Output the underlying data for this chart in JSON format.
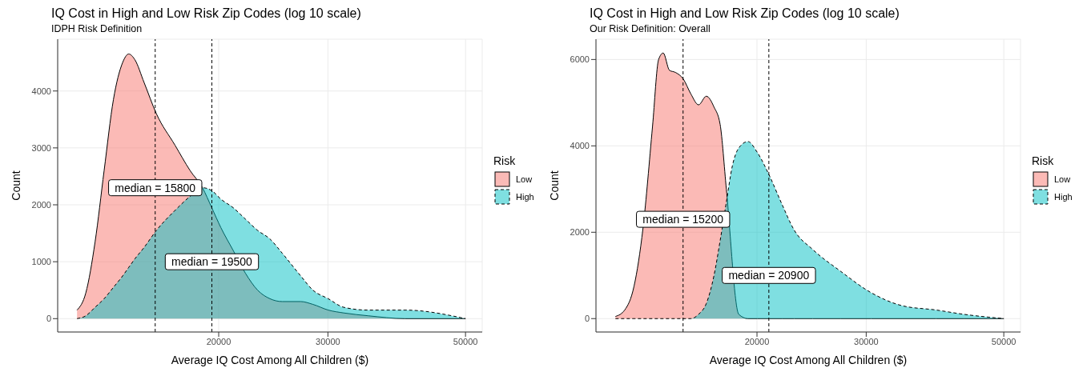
{
  "chart_data": [
    {
      "type": "area",
      "title": "IQ Cost in High and Low Risk Zip Codes (log 10 scale)",
      "subtitle": "IDPH Risk Definition",
      "xlabel": "Average IQ Cost Among All Children ($)",
      "ylabel": "Count",
      "legend_title": "Risk",
      "legend": "right",
      "grid": true,
      "log": "x",
      "x": [
        11820,
        12210,
        12640,
        13070,
        13530,
        14000,
        14320,
        14650,
        15160,
        15870,
        17000,
        17990,
        18830,
        19490,
        20160,
        21100,
        22080,
        23110,
        24190,
        25320,
        27120,
        28380,
        30040,
        31800,
        34840,
        39950,
        50000
      ],
      "series": [
        {
          "name": "Low",
          "color": "#f8766d",
          "line_style": "solid",
          "values": [
            150,
            450,
            1350,
            2600,
            3850,
            4500,
            4650,
            4550,
            4150,
            3600,
            3050,
            2600,
            2300,
            1950,
            1600,
            1200,
            800,
            500,
            350,
            300,
            300,
            250,
            150,
            100,
            50,
            0,
            0
          ]
        },
        {
          "name": "High",
          "color": "#00bfc4",
          "line_style": "dashed",
          "values": [
            0,
            50,
            200,
            350,
            550,
            750,
            900,
            1050,
            1250,
            1550,
            1900,
            2150,
            2300,
            2250,
            2100,
            1950,
            1750,
            1550,
            1400,
            1150,
            750,
            500,
            350,
            200,
            150,
            150,
            0
          ]
        }
      ],
      "xlim": [
        11000,
        53200
      ],
      "xticks": [
        20000,
        30000,
        50000
      ],
      "ylim": [
        -235,
        4910
      ],
      "yticks": [
        0,
        1000,
        2000,
        3000,
        4000
      ],
      "ref_lines": [
        {
          "axis": "x",
          "value": 15800,
          "line_style": "dashed"
        },
        {
          "axis": "x",
          "value": 19500,
          "line_style": "dashed"
        }
      ],
      "annotations": [
        {
          "text": "median = 15800",
          "x": 15800,
          "y": 2300
        },
        {
          "text": "median = 19500",
          "x": 19500,
          "y": 1000
        }
      ]
    },
    {
      "type": "area",
      "title": "IQ Cost in High and Low Risk Zip Codes (log 10 scale)",
      "subtitle": "Our Risk Definition: Overall",
      "xlabel": "Average IQ Cost Among All Children ($)",
      "ylabel": "Count",
      "legend_title": "Risk",
      "legend": "right",
      "grid": true,
      "log": "x",
      "x": [
        11825,
        12240,
        12670,
        13100,
        13570,
        13880,
        14120,
        14450,
        14780,
        15210,
        15650,
        16100,
        16570,
        17050,
        17440,
        17850,
        18260,
        18690,
        19340,
        20020,
        20960,
        21940,
        22960,
        24600,
        27260,
        30560,
        34260,
        38870,
        43090,
        50000
      ],
      "series": [
        {
          "name": "Low",
          "color": "#f8766d",
          "line_style": "solid",
          "x": [
            11825,
            12240,
            12670,
            13100,
            13570,
            13880,
            14120,
            14450,
            14780,
            15210,
            15650,
            16100,
            16570,
            17050,
            17440,
            17850,
            18690,
            19340,
            20020,
            20960,
            21940,
            22960,
            24600,
            27260,
            30560,
            34260,
            38870,
            43090,
            50000
          ],
          "values": [
            50,
            200,
            750,
            2100,
            4450,
            6000,
            6150,
            5750,
            5700,
            5550,
            5200,
            4950,
            5150,
            4900,
            4500,
            3000,
            100,
            0,
            0,
            0,
            0,
            0,
            0,
            0,
            0,
            0,
            0,
            0,
            0
          ]
        },
        {
          "name": "High",
          "color": "#00bfc4",
          "line_style": "dashed",
          "values": [
            0,
            0,
            0,
            0,
            0,
            0,
            0,
            0,
            0,
            0,
            0,
            100,
            350,
            1000,
            1800,
            2700,
            3550,
            3950,
            4100,
            3850,
            3300,
            2650,
            2050,
            1600,
            1100,
            600,
            300,
            200,
            100,
            0
          ]
        }
      ],
      "xlim": [
        11000,
        53200
      ],
      "xticks": [
        20000,
        30000,
        50000
      ],
      "ylim": [
        -310,
        6470
      ],
      "yticks": [
        0,
        2000,
        4000,
        6000
      ],
      "ref_lines": [
        {
          "axis": "x",
          "value": 15200,
          "line_style": "dashed"
        },
        {
          "axis": "x",
          "value": 20900,
          "line_style": "dashed"
        }
      ],
      "annotations": [
        {
          "text": "median = 15200",
          "x": 15200,
          "y": 2300
        },
        {
          "text": "median = 20900",
          "x": 20900,
          "y": 1000
        }
      ]
    }
  ]
}
